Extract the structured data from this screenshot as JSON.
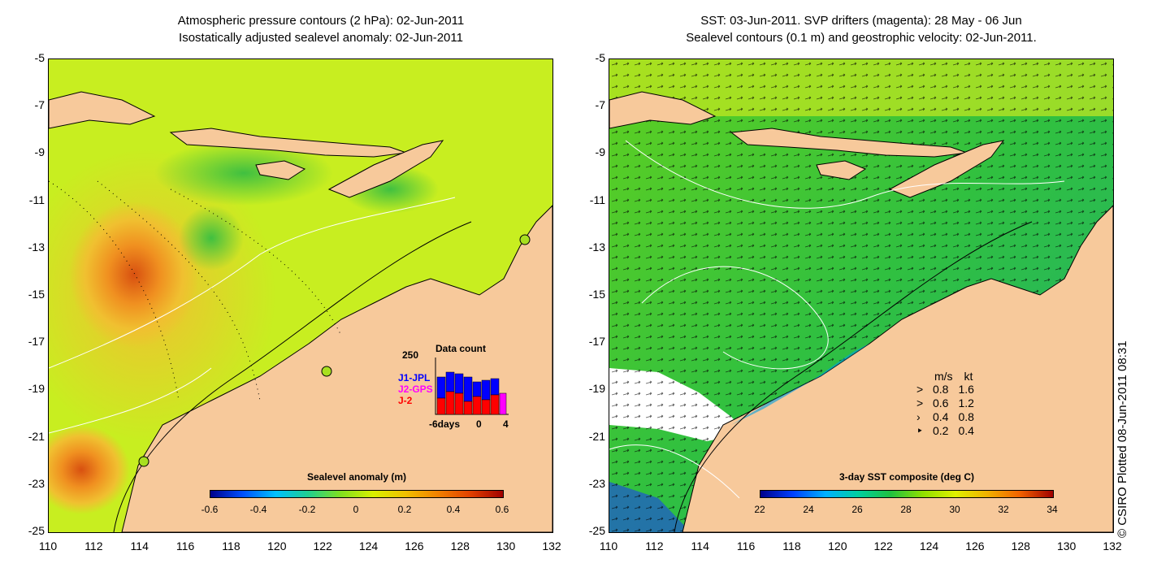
{
  "left_panel": {
    "title_line1": "Atmospheric pressure contours (2 hPa): 02-Jun-2011",
    "title_line2": "Isostatically adjusted sealevel anomaly: 02-Jun-2011",
    "colorbar": {
      "title": "Sealevel anomaly (m)",
      "ticks": [
        "-0.6",
        "-0.4",
        "-0.2",
        "0",
        "0.2",
        "0.4",
        "0.6"
      ],
      "colors": [
        "#00008b",
        "#0050ff",
        "#00c0ff",
        "#20d090",
        "#80e020",
        "#d8f000",
        "#f0c000",
        "#f08000",
        "#e04000",
        "#a00000"
      ]
    },
    "histogram": {
      "title": "Data count",
      "ymax": "250",
      "x_start": "-6days",
      "x_mid": "0",
      "x_end": "4",
      "series_labels": [
        {
          "label": "J1-JPL",
          "color": "#0000ff"
        },
        {
          "label": "J2-GPS",
          "color": "#ff00ff"
        },
        {
          "label": "J-2",
          "color": "#ff0000"
        }
      ]
    }
  },
  "right_panel": {
    "title_line1": "SST: 03-Jun-2011. SVP drifters (magenta): 28 May - 06 Jun",
    "title_line2": "Sealevel contours (0.1 m) and geostrophic velocity: 02-Jun-2011.",
    "colorbar": {
      "title": "3-day SST composite (deg C)",
      "ticks": [
        "22",
        "24",
        "26",
        "28",
        "30",
        "32",
        "34"
      ],
      "colors": [
        "#00008b",
        "#0040ff",
        "#00b0ff",
        "#00d0a0",
        "#20c040",
        "#90e000",
        "#e0f000",
        "#f0b000",
        "#f06000",
        "#a00000"
      ]
    },
    "velocity_legend": {
      "header_ms": "m/s",
      "header_kt": "kt",
      "rows": [
        {
          "ms": "0.8",
          "kt": "1.6"
        },
        {
          "ms": "0.6",
          "kt": "1.2"
        },
        {
          "ms": "0.4",
          "kt": "0.8"
        },
        {
          "ms": "0.2",
          "kt": "0.4"
        }
      ]
    }
  },
  "axes": {
    "lat_ticks": [
      "-5",
      "-7",
      "-9",
      "-11",
      "-13",
      "-15",
      "-17",
      "-19",
      "-21",
      "-23",
      "-25"
    ],
    "lon_ticks": [
      "110",
      "112",
      "114",
      "116",
      "118",
      "120",
      "122",
      "124",
      "126",
      "128",
      "130",
      "132"
    ]
  },
  "credit": "© CSIRO Plotted 08-Jun-2011 08:31",
  "colors": {
    "land": "#f7c99b",
    "sea_left": "#c8ee20",
    "sea_right": "#30c040"
  }
}
